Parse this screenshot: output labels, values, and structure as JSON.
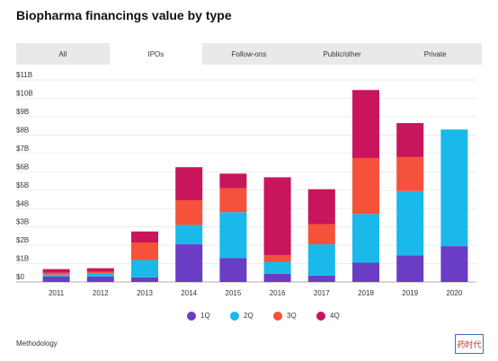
{
  "tabs": {
    "items": [
      "All",
      "IPOs",
      "Follow-ons",
      "Public/other",
      "Private"
    ],
    "selected": 1
  },
  "chart_data": {
    "type": "stacked-bar",
    "title": "Biopharma financings value by type",
    "categories": [
      "2011",
      "2012",
      "2013",
      "2014",
      "2015",
      "2016",
      "2017",
      "2018",
      "2019",
      "2020"
    ],
    "series": [
      {
        "name": "1Q",
        "color": "#6a3dc4",
        "values": [
          0.3,
          0.3,
          0.25,
          2.05,
          1.3,
          0.45,
          0.35,
          1.05,
          1.45,
          1.95
        ]
      },
      {
        "name": "2Q",
        "color": "#19b9e9",
        "values": [
          0.1,
          0.15,
          0.95,
          1.05,
          2.5,
          0.65,
          1.7,
          2.65,
          3.5,
          6.35
        ]
      },
      {
        "name": "3Q",
        "color": "#f5513b",
        "values": [
          0.1,
          0.1,
          0.95,
          1.35,
          1.3,
          0.35,
          1.1,
          3.05,
          1.85,
          null
        ]
      },
      {
        "name": "4Q",
        "color": "#c8155b",
        "values": [
          0.2,
          0.2,
          0.6,
          1.8,
          0.8,
          4.25,
          1.9,
          3.7,
          1.85,
          null
        ]
      }
    ],
    "ylim": [
      0,
      11
    ],
    "yticks": [
      {
        "value": 0,
        "label": "$0"
      },
      {
        "value": 1,
        "label": "$1B"
      },
      {
        "value": 2,
        "label": "$2B"
      },
      {
        "value": 3,
        "label": "$3B"
      },
      {
        "value": 4,
        "label": "$4B"
      },
      {
        "value": 5,
        "label": "$5B"
      },
      {
        "value": 6,
        "label": "$6B"
      },
      {
        "value": 7,
        "label": "$7B"
      },
      {
        "value": 8,
        "label": "$8B"
      },
      {
        "value": 9,
        "label": "$9B"
      },
      {
        "value": 10,
        "label": "$10B"
      },
      {
        "value": 11,
        "label": "$11B"
      }
    ],
    "grid": true,
    "legend": "bottom"
  },
  "footer": {
    "link": "Methodology",
    "logo": "药时代"
  }
}
